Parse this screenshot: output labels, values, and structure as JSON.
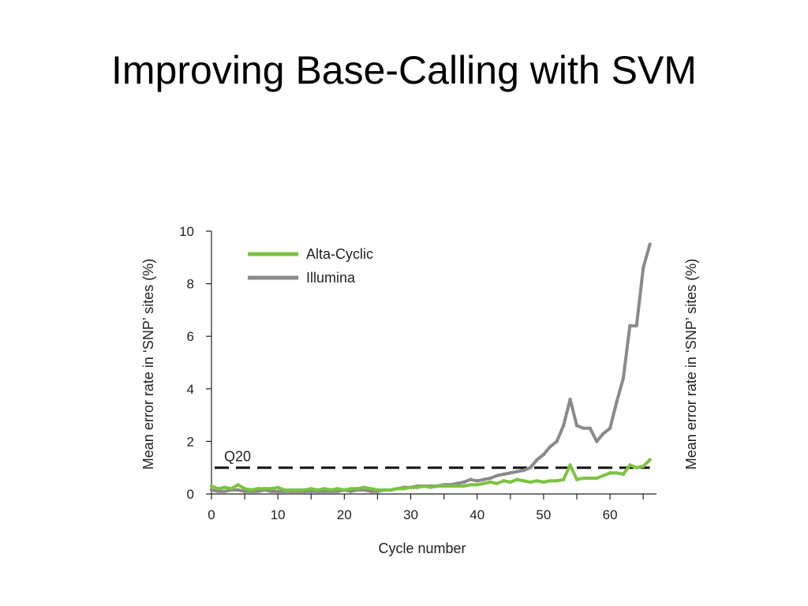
{
  "slide": {
    "title": "Improving Base-Calling with SVM"
  },
  "chart_data": {
    "type": "line",
    "xlabel": "Cycle number",
    "ylabel": "Mean error rate in ‘SNP’ sites (%)",
    "ylabel_right": "Mean error rate in ‘SNP’ sites (%)",
    "xlim": [
      0,
      67
    ],
    "ylim": [
      0,
      10
    ],
    "xticks": [
      0,
      10,
      20,
      30,
      40,
      50,
      60
    ],
    "yticks": [
      0,
      2,
      4,
      6,
      8,
      10
    ],
    "grid": false,
    "legend": "top-left",
    "reference_line": {
      "label": "Q20",
      "y": 1.0,
      "style": "dashed",
      "color": "#111111"
    },
    "series": [
      {
        "name": "Alta-Cyclic",
        "color": "#7dc242",
        "x": [
          0,
          1,
          2,
          3,
          4,
          5,
          6,
          7,
          8,
          9,
          10,
          11,
          12,
          13,
          14,
          15,
          16,
          17,
          18,
          19,
          20,
          21,
          22,
          23,
          24,
          25,
          26,
          27,
          28,
          29,
          30,
          31,
          32,
          33,
          34,
          35,
          36,
          37,
          38,
          39,
          40,
          41,
          42,
          43,
          44,
          45,
          46,
          47,
          48,
          49,
          50,
          51,
          52,
          53,
          54,
          55,
          56,
          57,
          58,
          59,
          60,
          61,
          62,
          63,
          64,
          65,
          66
        ],
        "values": [
          0.3,
          0.2,
          0.25,
          0.2,
          0.35,
          0.2,
          0.15,
          0.2,
          0.2,
          0.2,
          0.25,
          0.15,
          0.15,
          0.15,
          0.15,
          0.2,
          0.15,
          0.2,
          0.15,
          0.2,
          0.15,
          0.2,
          0.2,
          0.25,
          0.2,
          0.15,
          0.15,
          0.15,
          0.2,
          0.2,
          0.25,
          0.25,
          0.3,
          0.25,
          0.3,
          0.3,
          0.3,
          0.3,
          0.3,
          0.35,
          0.35,
          0.4,
          0.45,
          0.4,
          0.5,
          0.45,
          0.55,
          0.5,
          0.45,
          0.5,
          0.45,
          0.5,
          0.5,
          0.55,
          1.1,
          0.55,
          0.6,
          0.6,
          0.6,
          0.7,
          0.8,
          0.8,
          0.75,
          1.1,
          1.0,
          1.05,
          1.3
        ]
      },
      {
        "name": "Illumina",
        "color": "#8a8a8a",
        "x": [
          0,
          1,
          2,
          3,
          4,
          5,
          6,
          7,
          8,
          9,
          10,
          11,
          12,
          13,
          14,
          15,
          16,
          17,
          18,
          19,
          20,
          21,
          22,
          23,
          24,
          25,
          26,
          27,
          28,
          29,
          30,
          31,
          32,
          33,
          34,
          35,
          36,
          37,
          38,
          39,
          40,
          41,
          42,
          43,
          44,
          45,
          46,
          47,
          48,
          49,
          50,
          51,
          52,
          53,
          54,
          55,
          56,
          57,
          58,
          59,
          60,
          61,
          62,
          63,
          64,
          65,
          66
        ],
        "values": [
          0.15,
          0.1,
          0.1,
          0.15,
          0.15,
          0.1,
          0.1,
          0.1,
          0.15,
          0.1,
          0.1,
          0.1,
          0.1,
          0.1,
          0.1,
          0.1,
          0.1,
          0.1,
          0.1,
          0.1,
          0.15,
          0.1,
          0.15,
          0.15,
          0.1,
          0.1,
          0.15,
          0.15,
          0.2,
          0.25,
          0.25,
          0.3,
          0.3,
          0.3,
          0.3,
          0.35,
          0.35,
          0.4,
          0.45,
          0.55,
          0.5,
          0.55,
          0.6,
          0.7,
          0.75,
          0.8,
          0.85,
          0.9,
          1.0,
          1.3,
          1.5,
          1.8,
          2.0,
          2.6,
          3.6,
          2.6,
          2.5,
          2.5,
          2.0,
          2.3,
          2.5,
          3.5,
          4.4,
          6.4,
          6.4,
          8.6,
          9.5
        ]
      }
    ]
  }
}
